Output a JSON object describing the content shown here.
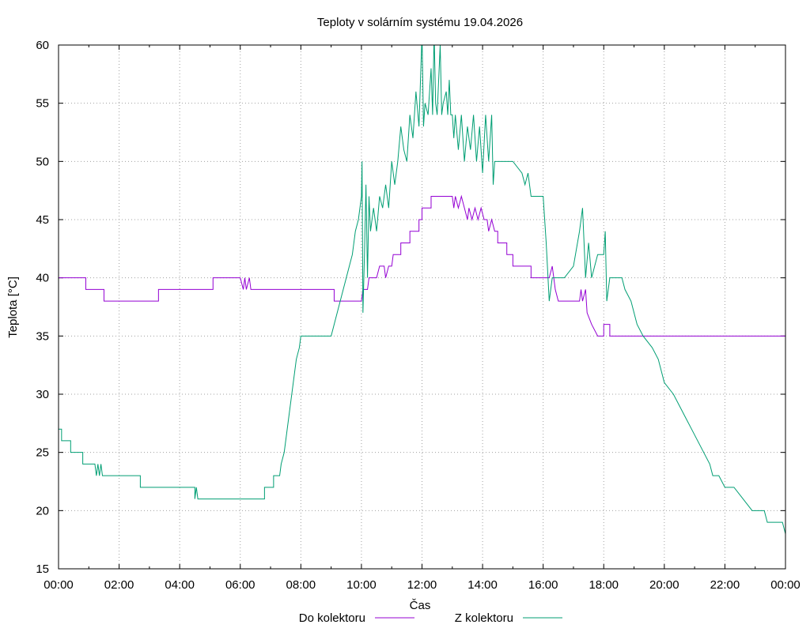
{
  "chart_data": {
    "type": "line",
    "title": "Teploty v solárním systému 19.04.2026",
    "xlabel": "Čas",
    "ylabel": "Teplota [°C]",
    "xlim": [
      0,
      24
    ],
    "ylim": [
      15,
      60
    ],
    "x_ticks": [
      "00:00",
      "02:00",
      "04:00",
      "06:00",
      "08:00",
      "10:00",
      "12:00",
      "14:00",
      "16:00",
      "18:00",
      "20:00",
      "22:00",
      "00:00"
    ],
    "y_ticks": [
      15,
      20,
      25,
      30,
      35,
      40,
      45,
      50,
      55,
      60
    ],
    "grid": true,
    "legend_position": "bottom",
    "colors": {
      "do_kolektoru": "#9400d3",
      "z_kolektoru": "#009e73"
    },
    "series": [
      {
        "name": "Do kolektoru",
        "color": "#9400d3",
        "points": [
          [
            0,
            40
          ],
          [
            0.9,
            40
          ],
          [
            0.9,
            39
          ],
          [
            1.5,
            39
          ],
          [
            1.5,
            38
          ],
          [
            3.3,
            38
          ],
          [
            3.3,
            39
          ],
          [
            5.1,
            39
          ],
          [
            5.1,
            40
          ],
          [
            6.0,
            40
          ],
          [
            6.1,
            39
          ],
          [
            6.15,
            40
          ],
          [
            6.2,
            39
          ],
          [
            6.3,
            40
          ],
          [
            6.35,
            39
          ],
          [
            6.45,
            39
          ],
          [
            9.1,
            39
          ],
          [
            9.1,
            38
          ],
          [
            10.0,
            38
          ],
          [
            10.05,
            39
          ],
          [
            10.2,
            39
          ],
          [
            10.25,
            40
          ],
          [
            10.5,
            40
          ],
          [
            10.6,
            41
          ],
          [
            10.75,
            41
          ],
          [
            10.8,
            40
          ],
          [
            10.9,
            41
          ],
          [
            11.0,
            41
          ],
          [
            11.05,
            42
          ],
          [
            11.3,
            42
          ],
          [
            11.3,
            43
          ],
          [
            11.6,
            43
          ],
          [
            11.6,
            44
          ],
          [
            11.9,
            44
          ],
          [
            11.9,
            45
          ],
          [
            12.0,
            45
          ],
          [
            12.0,
            46
          ],
          [
            12.3,
            46
          ],
          [
            12.3,
            47
          ],
          [
            13.0,
            47
          ],
          [
            13.05,
            46
          ],
          [
            13.1,
            47
          ],
          [
            13.2,
            46
          ],
          [
            13.3,
            47
          ],
          [
            13.4,
            46
          ],
          [
            13.5,
            45
          ],
          [
            13.55,
            46
          ],
          [
            13.65,
            45
          ],
          [
            13.75,
            46
          ],
          [
            13.85,
            45
          ],
          [
            13.95,
            46
          ],
          [
            14.05,
            45
          ],
          [
            14.15,
            45
          ],
          [
            14.2,
            44
          ],
          [
            14.3,
            45
          ],
          [
            14.4,
            44
          ],
          [
            14.5,
            44
          ],
          [
            14.5,
            43
          ],
          [
            14.8,
            43
          ],
          [
            14.8,
            42
          ],
          [
            15.0,
            42
          ],
          [
            15.0,
            41
          ],
          [
            15.6,
            41
          ],
          [
            15.6,
            40
          ],
          [
            16.2,
            40
          ],
          [
            16.3,
            41
          ],
          [
            16.4,
            39
          ],
          [
            16.5,
            38
          ],
          [
            17.2,
            38
          ],
          [
            17.25,
            39
          ],
          [
            17.3,
            38
          ],
          [
            17.4,
            39
          ],
          [
            17.45,
            37
          ],
          [
            17.6,
            36
          ],
          [
            17.8,
            35
          ],
          [
            18.0,
            35
          ],
          [
            18.0,
            36
          ],
          [
            18.2,
            36
          ],
          [
            18.2,
            35
          ],
          [
            24,
            35
          ]
        ]
      },
      {
        "name": "Z kolektoru",
        "color": "#009e73",
        "points": [
          [
            0,
            27
          ],
          [
            0.1,
            27
          ],
          [
            0.1,
            26
          ],
          [
            0.4,
            26
          ],
          [
            0.4,
            25
          ],
          [
            0.8,
            25
          ],
          [
            0.8,
            24
          ],
          [
            1.2,
            24
          ],
          [
            1.25,
            23
          ],
          [
            1.3,
            24
          ],
          [
            1.35,
            23
          ],
          [
            1.4,
            24
          ],
          [
            1.45,
            23
          ],
          [
            1.5,
            23
          ],
          [
            2.7,
            23
          ],
          [
            2.7,
            22
          ],
          [
            4.5,
            22
          ],
          [
            4.5,
            21
          ],
          [
            4.55,
            22
          ],
          [
            4.6,
            21
          ],
          [
            6.8,
            21
          ],
          [
            6.8,
            22
          ],
          [
            7.1,
            22
          ],
          [
            7.1,
            23
          ],
          [
            7.3,
            23
          ],
          [
            7.35,
            24
          ],
          [
            7.45,
            25
          ],
          [
            7.55,
            27
          ],
          [
            7.65,
            29
          ],
          [
            7.75,
            31
          ],
          [
            7.85,
            33
          ],
          [
            7.95,
            34
          ],
          [
            8.0,
            35
          ],
          [
            9.0,
            35
          ],
          [
            9.1,
            36
          ],
          [
            9.2,
            37
          ],
          [
            9.3,
            38
          ],
          [
            9.4,
            39
          ],
          [
            9.5,
            40
          ],
          [
            9.6,
            41
          ],
          [
            9.7,
            42
          ],
          [
            9.8,
            44
          ],
          [
            9.9,
            45
          ],
          [
            10.0,
            47
          ],
          [
            10.02,
            50
          ],
          [
            10.05,
            37
          ],
          [
            10.1,
            42
          ],
          [
            10.15,
            48
          ],
          [
            10.2,
            40
          ],
          [
            10.25,
            47
          ],
          [
            10.3,
            44
          ],
          [
            10.4,
            46
          ],
          [
            10.5,
            44
          ],
          [
            10.6,
            47
          ],
          [
            10.7,
            46
          ],
          [
            10.8,
            48
          ],
          [
            10.9,
            46
          ],
          [
            11.0,
            50
          ],
          [
            11.1,
            48
          ],
          [
            11.2,
            50
          ],
          [
            11.3,
            53
          ],
          [
            11.4,
            51
          ],
          [
            11.5,
            50
          ],
          [
            11.6,
            54
          ],
          [
            11.7,
            52
          ],
          [
            11.8,
            56
          ],
          [
            11.9,
            53
          ],
          [
            12.0,
            61
          ],
          [
            12.05,
            53
          ],
          [
            12.1,
            55
          ],
          [
            12.2,
            54
          ],
          [
            12.3,
            58
          ],
          [
            12.35,
            54
          ],
          [
            12.4,
            61
          ],
          [
            12.45,
            55
          ],
          [
            12.5,
            54
          ],
          [
            12.6,
            60
          ],
          [
            12.65,
            54
          ],
          [
            12.7,
            55
          ],
          [
            12.8,
            56
          ],
          [
            12.85,
            54
          ],
          [
            12.9,
            57
          ],
          [
            12.95,
            54
          ],
          [
            13.0,
            54
          ],
          [
            13.05,
            52
          ],
          [
            13.1,
            54
          ],
          [
            13.2,
            51
          ],
          [
            13.3,
            54
          ],
          [
            13.4,
            50
          ],
          [
            13.5,
            53
          ],
          [
            13.6,
            51
          ],
          [
            13.7,
            54
          ],
          [
            13.8,
            50
          ],
          [
            13.9,
            53
          ],
          [
            14.0,
            49
          ],
          [
            14.1,
            54
          ],
          [
            14.2,
            50
          ],
          [
            14.3,
            54
          ],
          [
            14.35,
            48
          ],
          [
            14.4,
            50
          ],
          [
            15.0,
            50
          ],
          [
            15.3,
            49
          ],
          [
            15.4,
            48
          ],
          [
            15.5,
            49
          ],
          [
            15.6,
            47
          ],
          [
            16.0,
            47
          ],
          [
            16.1,
            43
          ],
          [
            16.2,
            38
          ],
          [
            16.3,
            40
          ],
          [
            16.5,
            40
          ],
          [
            16.7,
            40
          ],
          [
            17.0,
            41
          ],
          [
            17.2,
            44
          ],
          [
            17.3,
            46
          ],
          [
            17.4,
            40
          ],
          [
            17.5,
            43
          ],
          [
            17.6,
            40
          ],
          [
            17.7,
            41
          ],
          [
            17.8,
            42
          ],
          [
            18.0,
            42
          ],
          [
            18.05,
            44
          ],
          [
            18.1,
            38
          ],
          [
            18.2,
            40
          ],
          [
            18.6,
            40
          ],
          [
            18.7,
            39
          ],
          [
            18.9,
            38
          ],
          [
            19.0,
            37
          ],
          [
            19.1,
            36
          ],
          [
            19.3,
            35
          ],
          [
            19.6,
            34
          ],
          [
            19.8,
            33
          ],
          [
            19.9,
            32
          ],
          [
            20.0,
            31
          ],
          [
            20.3,
            30
          ],
          [
            20.5,
            29
          ],
          [
            20.7,
            28
          ],
          [
            20.9,
            27
          ],
          [
            21.1,
            26
          ],
          [
            21.3,
            25
          ],
          [
            21.5,
            24
          ],
          [
            21.6,
            23
          ],
          [
            21.8,
            23
          ],
          [
            22.0,
            22
          ],
          [
            22.3,
            22
          ],
          [
            22.6,
            21
          ],
          [
            22.9,
            20
          ],
          [
            23.3,
            20
          ],
          [
            23.4,
            19
          ],
          [
            23.9,
            19
          ],
          [
            24.0,
            18
          ]
        ]
      }
    ]
  }
}
